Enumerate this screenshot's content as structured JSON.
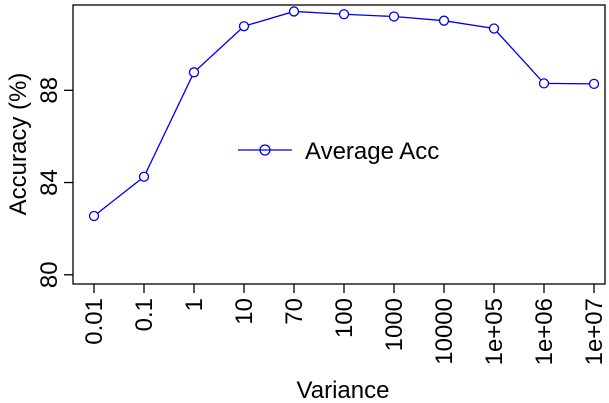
{
  "chart_data": {
    "type": "line",
    "title": "",
    "xlabel": "Variance",
    "ylabel": "Accuracy (%)",
    "categories": [
      "0.01",
      "0.1",
      "1",
      "10",
      "70",
      "100",
      "1000",
      "10000",
      "1e+05",
      "1e+06",
      "1e+07"
    ],
    "series": [
      {
        "name": "Average Acc",
        "values": [
          82.55,
          84.25,
          88.78,
          90.78,
          91.42,
          91.3,
          91.2,
          91.02,
          90.68,
          88.3,
          88.28
        ]
      }
    ],
    "yticks": [
      "80",
      "84",
      "88"
    ],
    "ylim": [
      79.6,
      91.7
    ],
    "grid": false,
    "legend_position": "center",
    "colors": {
      "series": "#0000ee",
      "axis": "#000000"
    }
  }
}
